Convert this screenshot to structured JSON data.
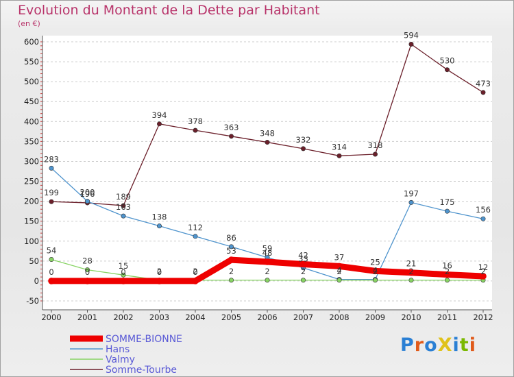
{
  "title": "Evolution du Montant de la Dette par Habitant",
  "subtitle": "(en €)",
  "logo": "ProXiti",
  "colors": {
    "title": "#b8336a",
    "legend_text": "#5a5ad6",
    "grid": "#cccccc"
  },
  "chart_data": {
    "type": "line",
    "title": "Evolution du Montant de la Dette par Habitant",
    "ylabel": "(en €)",
    "xlabel": "",
    "x": [
      "2000",
      "2001",
      "2002",
      "2003",
      "2004",
      "2005",
      "2006",
      "2007",
      "2008",
      "2009",
      "2010",
      "2011",
      "2012"
    ],
    "ylim": [
      -50,
      600
    ],
    "yticks": [
      -50,
      0,
      50,
      100,
      150,
      200,
      250,
      300,
      350,
      400,
      450,
      500,
      550,
      600
    ],
    "grid": "horizontal dashed",
    "legend_position": "bottom-left",
    "series": [
      {
        "name": "SOMME-BIONNE",
        "color": "#ee0000",
        "thick": true,
        "values": [
          0,
          0,
          0,
          0,
          0,
          53,
          48,
          42,
          37,
          25,
          21,
          16,
          12
        ]
      },
      {
        "name": "Hans",
        "color": "#4f94cd",
        "thick": false,
        "values": [
          283,
          200,
          163,
          138,
          112,
          86,
          59,
          33,
          4,
          4,
          197,
          175,
          156
        ]
      },
      {
        "name": "Valmy",
        "color": "#88d464",
        "thick": false,
        "values": [
          54,
          28,
          15,
          2,
          2,
          2,
          2,
          2,
          2,
          2,
          2,
          2,
          2
        ]
      },
      {
        "name": "Somme-Tourbe",
        "color": "#6b1f2a",
        "thick": false,
        "values": [
          199,
          196,
          189,
          394,
          378,
          363,
          348,
          332,
          314,
          318,
          594,
          530,
          473
        ]
      }
    ]
  }
}
